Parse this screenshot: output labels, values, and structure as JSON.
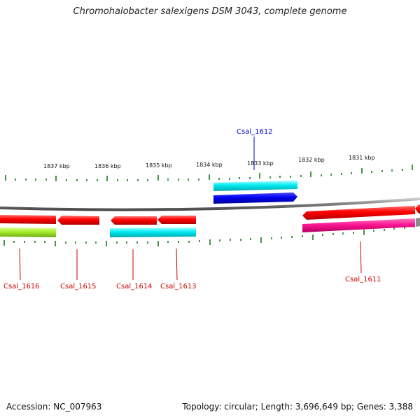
{
  "title": "Chromohalobacter salexigens DSM 3043, complete genome",
  "footer": {
    "accession": "Accession: NC_007963",
    "summary": "Topology: circular; Length: 3,696,649 bp; Genes: 3,388"
  },
  "scale_labels": [
    "1837 kbp",
    "1836 kbp",
    "1835 kbp",
    "1834 kbp",
    "1833 kbp",
    "1832 kbp",
    "1831 kbp"
  ],
  "gene_labels": [
    "Csal_1616",
    "Csal_1615",
    "Csal_1614",
    "Csal_1613",
    "Csal_1612",
    "Csal_1611"
  ],
  "colors": {
    "backbone": "#8a8a8a",
    "tick": "#1a7a1a",
    "forward_label": "#0000cc",
    "reverse_label": "#cc0000",
    "red_gene": "#ff0000",
    "blue_gene": "#0000ee",
    "cyan_feature": "#00e5ee",
    "lime_feature": "#a6ee2a",
    "magenta_feature": "#ff1493"
  }
}
